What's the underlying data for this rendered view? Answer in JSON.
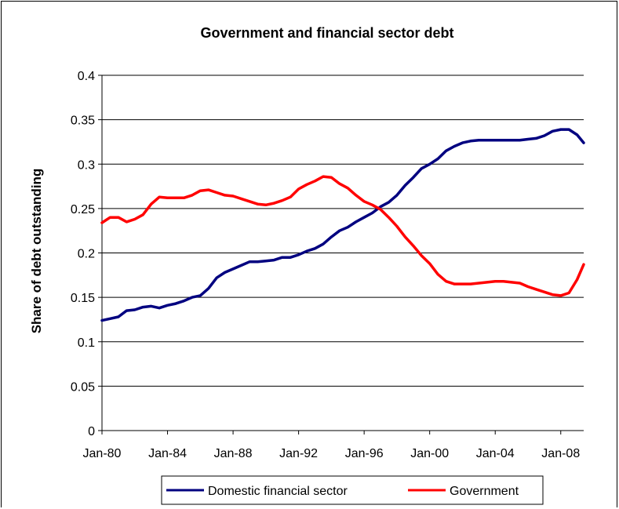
{
  "chart_data": {
    "type": "line",
    "title": "Government and financial sector debt",
    "xlabel": "",
    "ylabel": "Share of debt outstanding",
    "ylim": [
      0,
      0.4
    ],
    "yticks": [
      "0",
      "0.05",
      "0.1",
      "0.15",
      "0.2",
      "0.25",
      "0.3",
      "0.35",
      "0.4"
    ],
    "xlim": [
      1980.0,
      2009.4
    ],
    "xticks": [
      {
        "label": "Jan-80",
        "x": 1980
      },
      {
        "label": "Jan-84",
        "x": 1984
      },
      {
        "label": "Jan-88",
        "x": 1988
      },
      {
        "label": "Jan-92",
        "x": 1992
      },
      {
        "label": "Jan-96",
        "x": 1996
      },
      {
        "label": "Jan-00",
        "x": 2000
      },
      {
        "label": "Jan-04",
        "x": 2004
      },
      {
        "label": "Jan-08",
        "x": 2008
      }
    ],
    "grid": "horizontal",
    "legend": "bottom",
    "series": [
      {
        "name": "Domestic financial sector",
        "color": "#000080",
        "points": [
          [
            1980.0,
            0.124
          ],
          [
            1980.5,
            0.126
          ],
          [
            1981.0,
            0.128
          ],
          [
            1981.5,
            0.135
          ],
          [
            1982.0,
            0.136
          ],
          [
            1982.5,
            0.139
          ],
          [
            1983.0,
            0.14
          ],
          [
            1983.5,
            0.138
          ],
          [
            1984.0,
            0.141
          ],
          [
            1984.5,
            0.143
          ],
          [
            1985.0,
            0.146
          ],
          [
            1985.5,
            0.15
          ],
          [
            1986.0,
            0.152
          ],
          [
            1986.5,
            0.16
          ],
          [
            1987.0,
            0.172
          ],
          [
            1987.5,
            0.178
          ],
          [
            1988.0,
            0.182
          ],
          [
            1988.5,
            0.186
          ],
          [
            1989.0,
            0.19
          ],
          [
            1989.5,
            0.19
          ],
          [
            1990.0,
            0.191
          ],
          [
            1990.5,
            0.192
          ],
          [
            1991.0,
            0.195
          ],
          [
            1991.5,
            0.195
          ],
          [
            1992.0,
            0.198
          ],
          [
            1992.5,
            0.202
          ],
          [
            1993.0,
            0.205
          ],
          [
            1993.5,
            0.21
          ],
          [
            1994.0,
            0.218
          ],
          [
            1994.5,
            0.225
          ],
          [
            1995.0,
            0.229
          ],
          [
            1995.5,
            0.235
          ],
          [
            1996.0,
            0.24
          ],
          [
            1996.5,
            0.245
          ],
          [
            1997.0,
            0.252
          ],
          [
            1997.5,
            0.257
          ],
          [
            1998.0,
            0.265
          ],
          [
            1998.5,
            0.276
          ],
          [
            1999.0,
            0.285
          ],
          [
            1999.5,
            0.295
          ],
          [
            2000.0,
            0.3
          ],
          [
            2000.5,
            0.306
          ],
          [
            2001.0,
            0.315
          ],
          [
            2001.5,
            0.32
          ],
          [
            2002.0,
            0.324
          ],
          [
            2002.5,
            0.326
          ],
          [
            2003.0,
            0.327
          ],
          [
            2003.5,
            0.327
          ],
          [
            2004.0,
            0.327
          ],
          [
            2004.5,
            0.327
          ],
          [
            2005.0,
            0.327
          ],
          [
            2005.5,
            0.327
          ],
          [
            2006.0,
            0.328
          ],
          [
            2006.5,
            0.329
          ],
          [
            2007.0,
            0.332
          ],
          [
            2007.5,
            0.337
          ],
          [
            2008.0,
            0.339
          ],
          [
            2008.5,
            0.339
          ],
          [
            2009.0,
            0.333
          ],
          [
            2009.4,
            0.324
          ]
        ]
      },
      {
        "name": "Government",
        "color": "#ff0000",
        "points": [
          [
            1980.0,
            0.234
          ],
          [
            1980.5,
            0.24
          ],
          [
            1981.0,
            0.24
          ],
          [
            1981.5,
            0.235
          ],
          [
            1982.0,
            0.238
          ],
          [
            1982.5,
            0.243
          ],
          [
            1983.0,
            0.255
          ],
          [
            1983.5,
            0.263
          ],
          [
            1984.0,
            0.262
          ],
          [
            1984.5,
            0.262
          ],
          [
            1985.0,
            0.262
          ],
          [
            1985.5,
            0.265
          ],
          [
            1986.0,
            0.27
          ],
          [
            1986.5,
            0.271
          ],
          [
            1987.0,
            0.268
          ],
          [
            1987.5,
            0.265
          ],
          [
            1988.0,
            0.264
          ],
          [
            1988.5,
            0.261
          ],
          [
            1989.0,
            0.258
          ],
          [
            1989.5,
            0.255
          ],
          [
            1990.0,
            0.254
          ],
          [
            1990.5,
            0.256
          ],
          [
            1991.0,
            0.259
          ],
          [
            1991.5,
            0.263
          ],
          [
            1992.0,
            0.272
          ],
          [
            1992.5,
            0.277
          ],
          [
            1993.0,
            0.281
          ],
          [
            1993.5,
            0.286
          ],
          [
            1994.0,
            0.285
          ],
          [
            1994.5,
            0.278
          ],
          [
            1995.0,
            0.273
          ],
          [
            1995.5,
            0.265
          ],
          [
            1996.0,
            0.258
          ],
          [
            1996.5,
            0.254
          ],
          [
            1997.0,
            0.249
          ],
          [
            1997.5,
            0.24
          ],
          [
            1998.0,
            0.23
          ],
          [
            1998.5,
            0.218
          ],
          [
            1999.0,
            0.208
          ],
          [
            1999.5,
            0.197
          ],
          [
            2000.0,
            0.188
          ],
          [
            2000.5,
            0.176
          ],
          [
            2001.0,
            0.168
          ],
          [
            2001.5,
            0.165
          ],
          [
            2002.0,
            0.165
          ],
          [
            2002.5,
            0.165
          ],
          [
            2003.0,
            0.166
          ],
          [
            2003.5,
            0.167
          ],
          [
            2004.0,
            0.168
          ],
          [
            2004.5,
            0.168
          ],
          [
            2005.0,
            0.167
          ],
          [
            2005.5,
            0.166
          ],
          [
            2006.0,
            0.162
          ],
          [
            2006.5,
            0.159
          ],
          [
            2007.0,
            0.156
          ],
          [
            2007.5,
            0.153
          ],
          [
            2008.0,
            0.152
          ],
          [
            2008.5,
            0.155
          ],
          [
            2009.0,
            0.17
          ],
          [
            2009.4,
            0.187
          ]
        ]
      }
    ]
  }
}
